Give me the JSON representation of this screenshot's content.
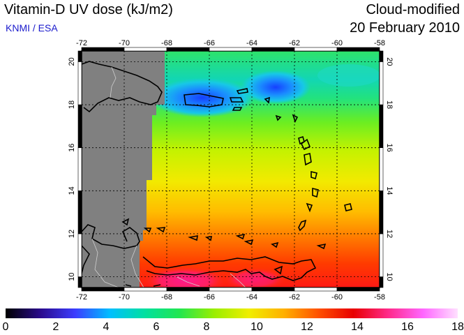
{
  "header": {
    "title": "Vitamin-D UV dose (kJ/m2)",
    "credit": "KNMI / ESA",
    "mode": "Cloud-modified",
    "date": "20 February 2010"
  },
  "map": {
    "lon_range": [
      -72,
      -58
    ],
    "lat_range": [
      9.5,
      20.5
    ],
    "lon_ticks": [
      -72,
      -70,
      -68,
      -66,
      -64,
      -62,
      -60,
      -58
    ],
    "lat_ticks": [
      10,
      12,
      14,
      16,
      18,
      20
    ],
    "no_data_color": "#808080",
    "gridlines": "dotted"
  },
  "colorbar": {
    "min": 0,
    "max": 18,
    "ticks": [
      "0",
      "2",
      "4",
      "6",
      "8",
      "10",
      "12",
      "14",
      "16",
      "18"
    ],
    "colors": [
      "#000000",
      "#2a0a8c",
      "#3c3cff",
      "#00bfff",
      "#00e0a0",
      "#22e650",
      "#9aee00",
      "#f0ee00",
      "#ffb000",
      "#ff5000",
      "#e80000",
      "#ff2a8a",
      "#ff66ff",
      "#ffe0ff"
    ]
  }
}
